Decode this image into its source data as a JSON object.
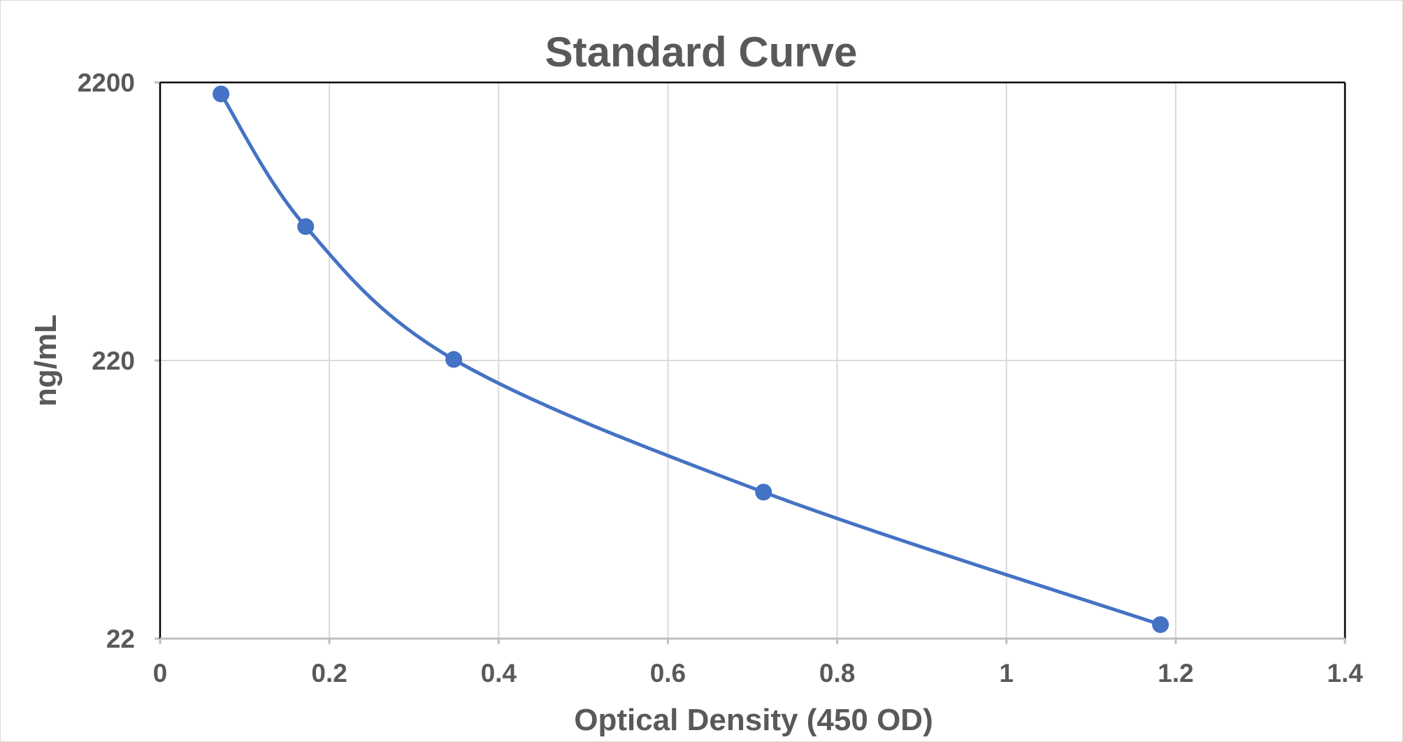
{
  "chart_data": {
    "type": "scatter",
    "title": "Standard Curve",
    "xlabel": "Optical Density (450 OD)",
    "ylabel": "ng/mL",
    "xlim": [
      0,
      1.4
    ],
    "ylim": [
      22,
      2200
    ],
    "yscale": "log",
    "x_ticks": [
      "0",
      "0.2",
      "0.4",
      "0.6",
      "0.8",
      "1",
      "1.2",
      "1.4"
    ],
    "y_ticks": [
      "22",
      "220",
      "2200"
    ],
    "grid": true,
    "legend": "none",
    "smoothed_line": true,
    "series": [
      {
        "color": "#4472c4",
        "points": [
          {
            "x": 0.072,
            "y": 2000
          },
          {
            "x": 0.172,
            "y": 667
          },
          {
            "x": 0.347,
            "y": 222
          },
          {
            "x": 0.713,
            "y": 74
          },
          {
            "x": 1.182,
            "y": 24.7
          }
        ]
      }
    ]
  }
}
